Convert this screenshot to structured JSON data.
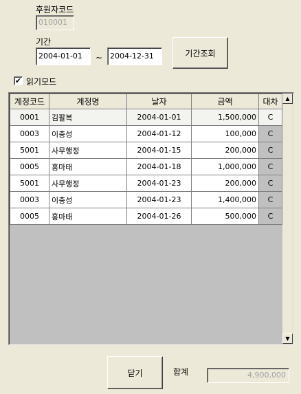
{
  "sponsor": {
    "label": "후원자코드",
    "value": "010001"
  },
  "period": {
    "label": "기간",
    "start": "2004-01-01",
    "separator": "~",
    "end": "2004-12-31",
    "query_button": "기간조회"
  },
  "read_mode": {
    "label": "읽기모드",
    "checked": true,
    "check_glyph": "✔"
  },
  "grid": {
    "columns": [
      "계정코드",
      "계정명",
      "날자",
      "금액",
      "대차"
    ],
    "rows": [
      {
        "code": "0001",
        "name": "김팔복",
        "date": "2004-01-01",
        "amount": "1,500,000",
        "dc": "C"
      },
      {
        "code": "0003",
        "name": "이충성",
        "date": "2004-01-12",
        "amount": "100,000",
        "dc": "C"
      },
      {
        "code": "5001",
        "name": "사무행정",
        "date": "2004-01-15",
        "amount": "200,000",
        "dc": "C"
      },
      {
        "code": "0005",
        "name": "홍마태",
        "date": "2004-01-18",
        "amount": "1,000,000",
        "dc": "C"
      },
      {
        "code": "5001",
        "name": "사무행정",
        "date": "2004-01-23",
        "amount": "200,000",
        "dc": "C"
      },
      {
        "code": "0003",
        "name": "이충성",
        "date": "2004-01-23",
        "amount": "1,400,000",
        "dc": "C"
      },
      {
        "code": "0005",
        "name": "홍마태",
        "date": "2004-01-26",
        "amount": "500,000",
        "dc": "C"
      }
    ],
    "selected_row": 0
  },
  "scroll": {
    "up_glyph": "▲",
    "down_glyph": "▼"
  },
  "footer": {
    "close_button": "닫기",
    "total_label": "합계",
    "total_value": "4,900,000"
  }
}
